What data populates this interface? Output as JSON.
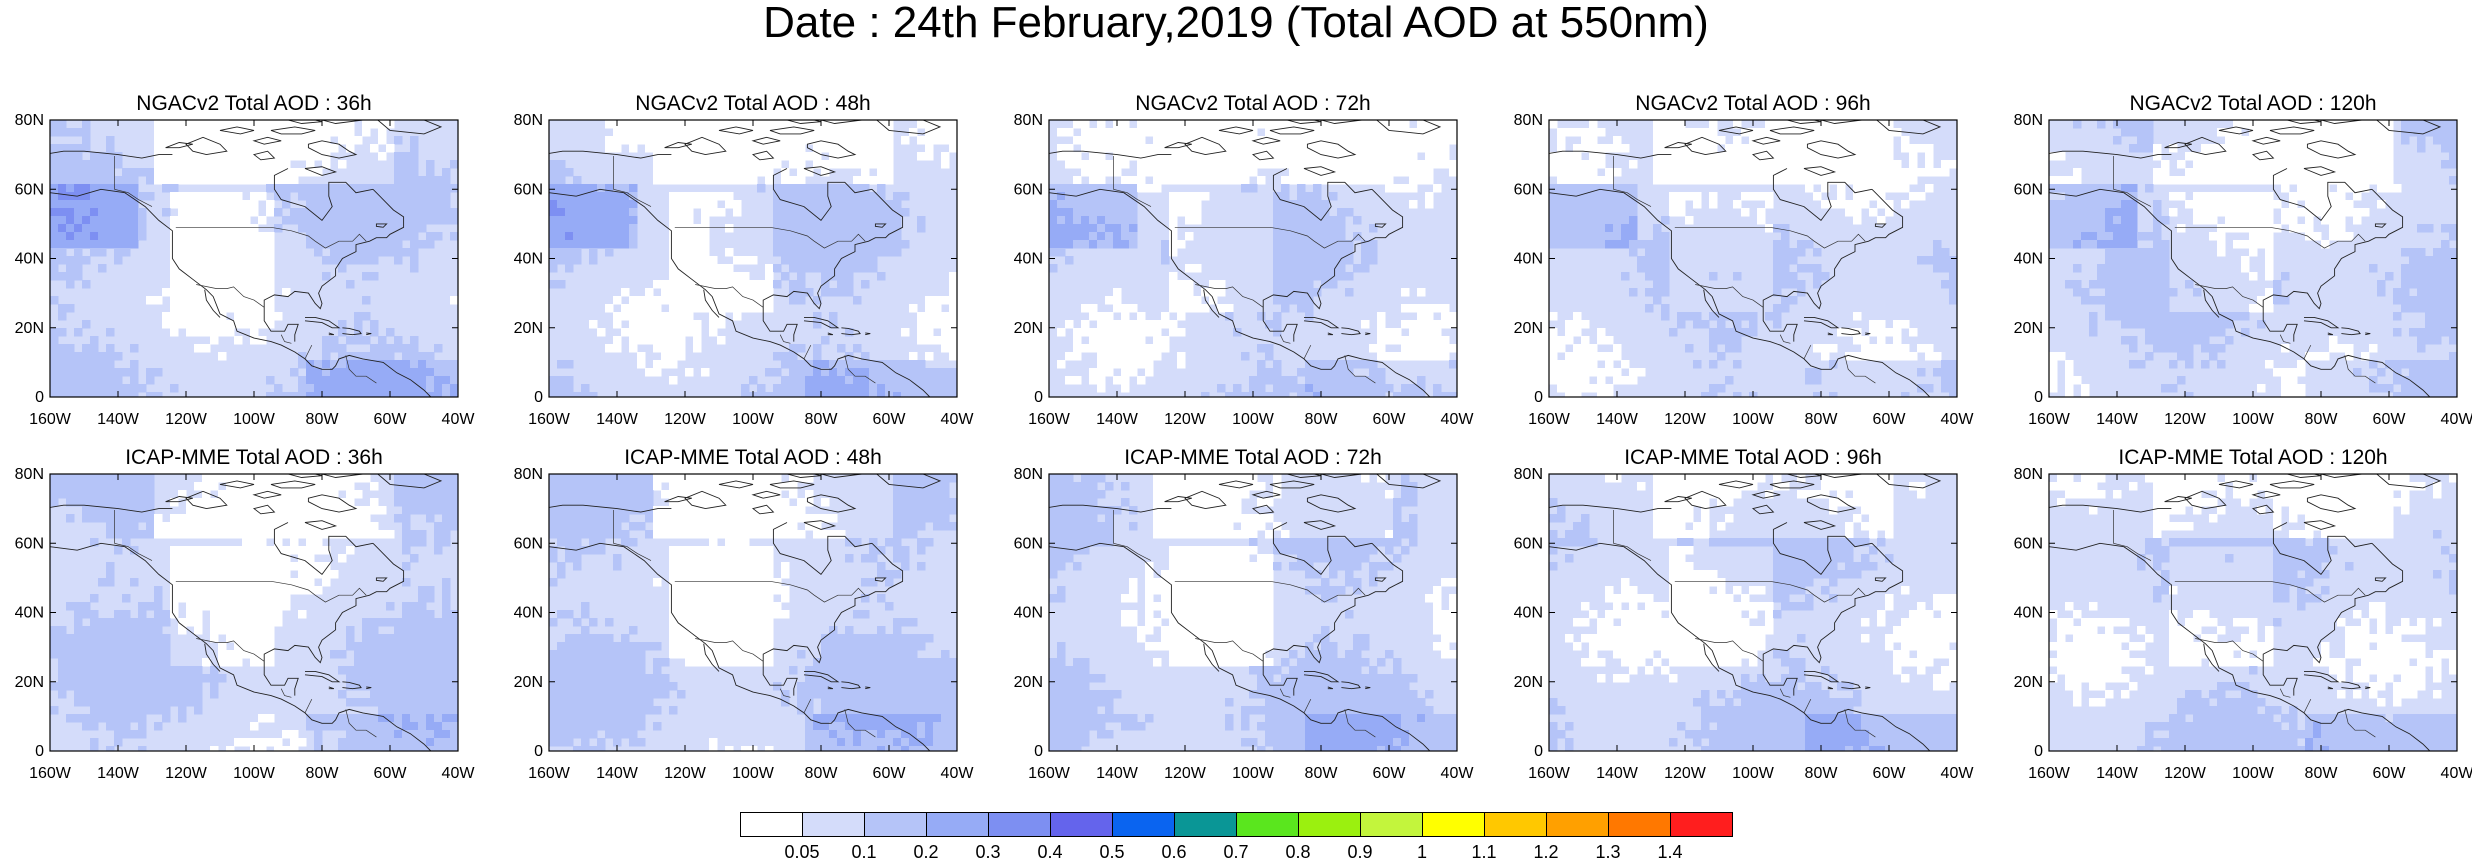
{
  "title": "Date : 24th February,2019 (Total AOD at 550nm)",
  "lon_labels": [
    "160W",
    "140W",
    "120W",
    "100W",
    "80W",
    "60W",
    "40W"
  ],
  "lat_labels": [
    "0",
    "20N",
    "40N",
    "60N",
    "80N"
  ],
  "panels": [
    {
      "title": "NGACv2 Total AOD : 36h",
      "model": "NGACv2",
      "lead": "36h"
    },
    {
      "title": "NGACv2 Total AOD : 48h",
      "model": "NGACv2",
      "lead": "48h"
    },
    {
      "title": "NGACv2 Total AOD : 72h",
      "model": "NGACv2",
      "lead": "72h"
    },
    {
      "title": "NGACv2 Total AOD : 96h",
      "model": "NGACv2",
      "lead": "96h"
    },
    {
      "title": "NGACv2 Total AOD : 120h",
      "model": "NGACv2",
      "lead": "120h"
    },
    {
      "title": "ICAP-MME Total AOD : 36h",
      "model": "ICAP-MME",
      "lead": "36h"
    },
    {
      "title": "ICAP-MME Total AOD : 48h",
      "model": "ICAP-MME",
      "lead": "48h"
    },
    {
      "title": "ICAP-MME Total AOD : 72h",
      "model": "ICAP-MME",
      "lead": "72h"
    },
    {
      "title": "ICAP-MME Total AOD : 96h",
      "model": "ICAP-MME",
      "lead": "96h"
    },
    {
      "title": "ICAP-MME Total AOD : 120h",
      "model": "ICAP-MME",
      "lead": "120h"
    }
  ],
  "colorbar": {
    "labels": [
      "0.05",
      "0.1",
      "0.2",
      "0.3",
      "0.4",
      "0.5",
      "0.6",
      "0.7",
      "0.8",
      "0.9",
      "1",
      "1.1",
      "1.2",
      "1.3",
      "1.4"
    ],
    "colors": [
      "#ffffff",
      "#d4dcfa",
      "#b5c4f8",
      "#96abf6",
      "#7d8ff2",
      "#6464ec",
      "#0a64f0",
      "#0a9696",
      "#5ae61e",
      "#9bf00f",
      "#c3f53c",
      "#ffff00",
      "#ffc800",
      "#ffa000",
      "#ff7800",
      "#ff1e1e"
    ]
  },
  "background_colors": [
    "#ffffff",
    "#d4dcfa",
    "#b5c4f8",
    "#96abf6",
    "#7d8ff2"
  ]
}
